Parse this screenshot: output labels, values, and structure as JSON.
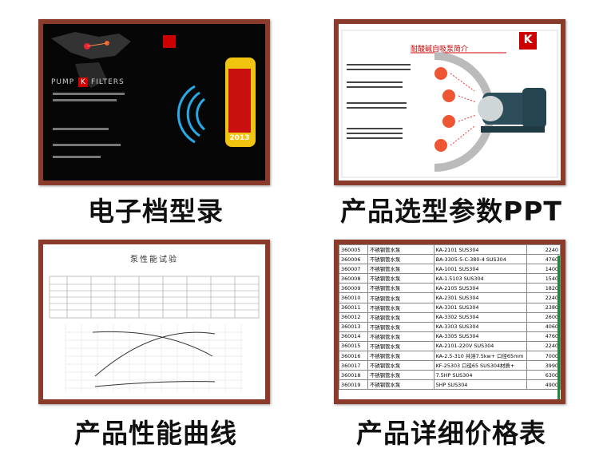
{
  "panels": [
    {
      "caption": "电子档型录",
      "brand_left": "PUMP",
      "brand_logo": "K",
      "brand_right": "FILTERS",
      "year": "2013"
    },
    {
      "caption": "产品选型参数PPT",
      "slide_title": "耐酸碱自吸泵简介",
      "logo": "K"
    },
    {
      "caption": "产品性能曲线",
      "sheet_title": "泵性能试验"
    },
    {
      "caption": "产品详细价格表",
      "rows": [
        [
          "360005",
          "不锈钢管水泵",
          "KA-2101 SUS304",
          "2240"
        ],
        [
          "360006",
          "不锈钢管水泵",
          "BA-3305-5-C-380-4 SUS304",
          "4760"
        ],
        [
          "360007",
          "不锈钢管水泵",
          "KA-1001 SUS304",
          "1400"
        ],
        [
          "360008",
          "不锈钢管水泵",
          "KA-1.5103 SUS304",
          "1540"
        ],
        [
          "360009",
          "不锈钢管水泵",
          "KA-2105 SUS304",
          "1820"
        ],
        [
          "360010",
          "不锈钢管水泵",
          "KA-2301 SUS304",
          "2240"
        ],
        [
          "360011",
          "不锈钢管水泵",
          "KA-3301 SUS304",
          "2380"
        ],
        [
          "360012",
          "不锈钢管水泵",
          "KA-3302 SUS304",
          "2600"
        ],
        [
          "360013",
          "不锈钢管水泵",
          "KA-3303 SUS304",
          "4060"
        ],
        [
          "360014",
          "不锈钢管水泵",
          "KA-3305 SUS304",
          "4760"
        ],
        [
          "360015",
          "不锈钢管水泵",
          "KA-2101-220V SUS304",
          "2240"
        ],
        [
          "360016",
          "不锈钢管水泵",
          "KA-2.5-310 共溶7.5kw+ 口径65mm",
          "7000"
        ],
        [
          "360017",
          "不锈钢管水泵",
          "KF-25303 口径65 SUS304材质+",
          "3990"
        ],
        [
          "360018",
          "不锈钢管水泵",
          "7.5HP SUS304",
          "6300"
        ],
        [
          "360019",
          "不锈钢管水泵",
          "5HP SUS304",
          "4900"
        ]
      ]
    }
  ]
}
